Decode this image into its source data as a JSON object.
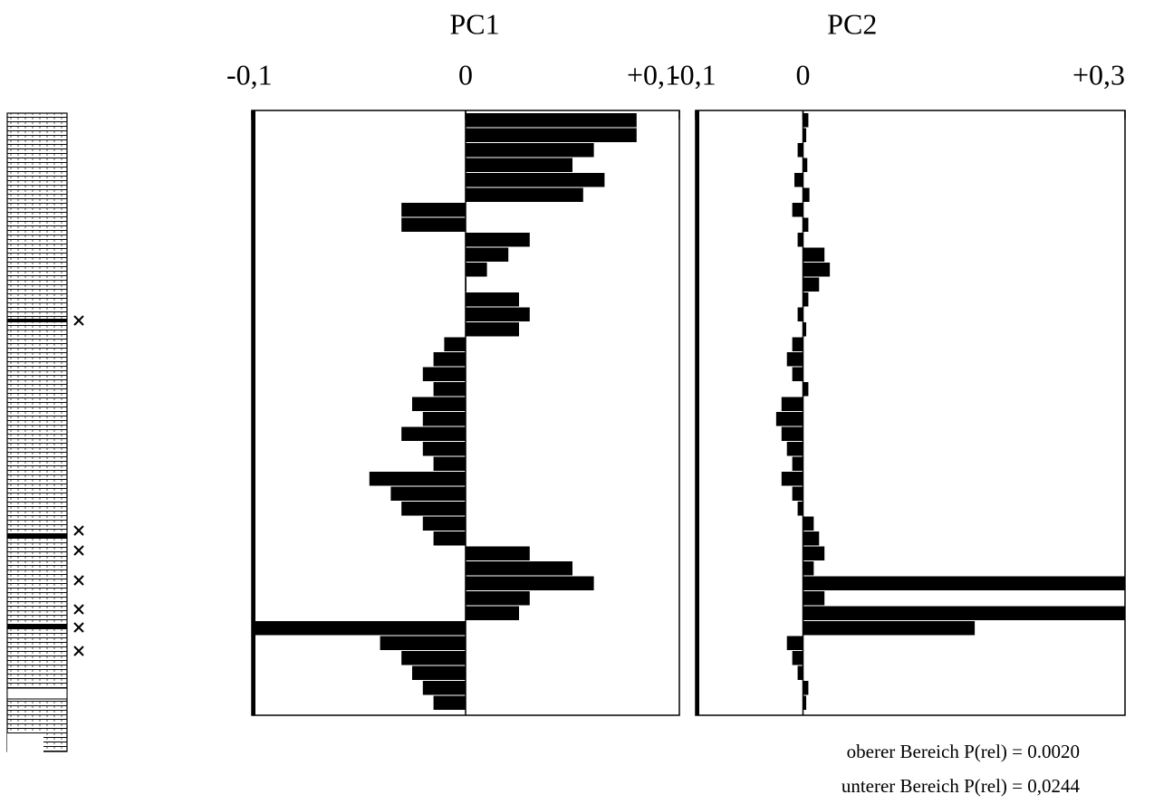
{
  "chart_data": [
    {
      "type": "hbar",
      "title": "PC1",
      "color": "#000000",
      "xlim": [
        -0.1,
        0.1
      ],
      "xticks": [
        {
          "value": -0.1,
          "label": "-0,1"
        },
        0,
        {
          "value": 0.1,
          "label": "+0,1"
        }
      ],
      "categories": [
        null,
        null,
        null,
        null,
        null,
        null,
        null,
        null,
        null,
        null,
        null,
        null,
        null,
        null,
        null,
        null,
        null,
        null,
        null,
        null,
        null,
        null,
        null,
        null,
        null,
        null,
        null,
        null,
        null,
        null,
        null,
        null,
        null,
        null,
        null,
        null,
        null,
        null,
        null,
        null
      ],
      "values": [
        0.08,
        0.08,
        0.06,
        0.05,
        0.065,
        0.055,
        -0.03,
        -0.03,
        0.03,
        0.02,
        0.01,
        0.0,
        0.025,
        0.03,
        0.025,
        -0.01,
        -0.015,
        -0.02,
        -0.015,
        -0.025,
        -0.02,
        -0.03,
        -0.02,
        -0.015,
        -0.045,
        -0.035,
        -0.03,
        -0.02,
        -0.015,
        0.03,
        0.05,
        0.06,
        0.03,
        0.025,
        -0.1,
        -0.04,
        -0.03,
        -0.025,
        -0.02,
        -0.015
      ]
    },
    {
      "type": "hbar",
      "title": "PC2",
      "color": "#000000",
      "xlim": [
        -0.1,
        0.3
      ],
      "xticks": [
        {
          "value": -0.1,
          "label": "-0,1"
        },
        0,
        {
          "value": 0.3,
          "label": "+0,3"
        }
      ],
      "categories": [
        null,
        null,
        null,
        null,
        null,
        null,
        null,
        null,
        null,
        null,
        null,
        null,
        null,
        null,
        null,
        null,
        null,
        null,
        null,
        null,
        null,
        null,
        null,
        null,
        null,
        null,
        null,
        null,
        null,
        null,
        null,
        null,
        null,
        null,
        null,
        null,
        null,
        null,
        null,
        null
      ],
      "values": [
        0.005,
        0.003,
        -0.005,
        0.004,
        -0.008,
        0.006,
        -0.01,
        0.005,
        -0.005,
        0.02,
        0.025,
        0.015,
        0.005,
        -0.005,
        0.003,
        -0.01,
        -0.015,
        -0.01,
        0.005,
        -0.02,
        -0.025,
        -0.02,
        -0.015,
        -0.01,
        -0.02,
        -0.01,
        -0.005,
        0.01,
        0.015,
        0.02,
        0.01,
        0.3,
        0.02,
        0.3,
        0.16,
        -0.015,
        -0.01,
        -0.005,
        0.005,
        0.003
      ],
      "annotations": [
        "oberer Bereich P(rel) = 0.0020",
        "unterer Bereich P(rel) = 0,0244"
      ]
    }
  ]
}
